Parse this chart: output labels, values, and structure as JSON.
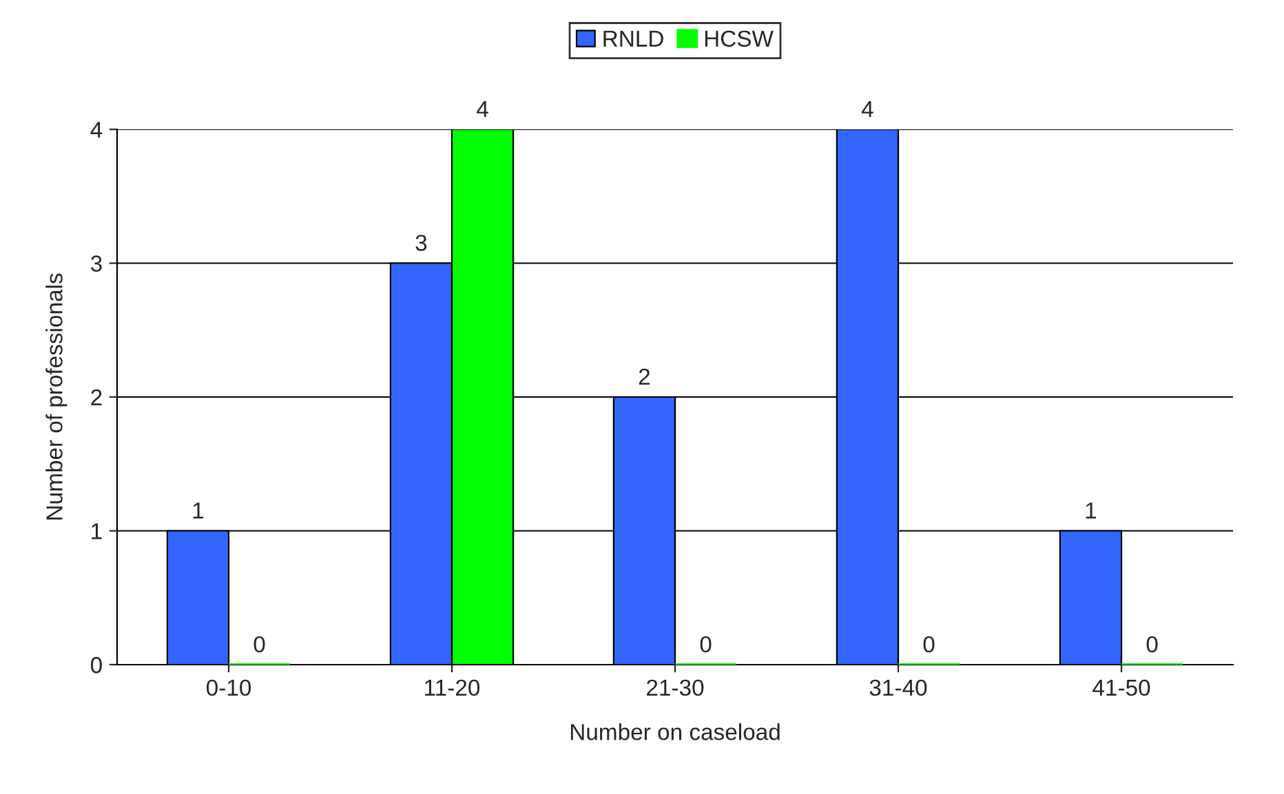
{
  "chart_data": {
    "type": "bar",
    "xlabel": "Number on caseload",
    "ylabel": "Number of professionals",
    "categories": [
      "0-10",
      "11-20",
      "21-30",
      "31-40",
      "41-50"
    ],
    "series": [
      {
        "name": "RNLD",
        "color": "#3366ff",
        "values": [
          1,
          3,
          2,
          4,
          1
        ]
      },
      {
        "name": "HCSW",
        "color": "#00ff00",
        "values": [
          0,
          4,
          0,
          0,
          0
        ]
      }
    ],
    "ylim": [
      0,
      4
    ],
    "yticks": [
      0,
      1,
      2,
      3,
      4
    ],
    "grid": "y",
    "legend": "top",
    "data_labels": true
  }
}
